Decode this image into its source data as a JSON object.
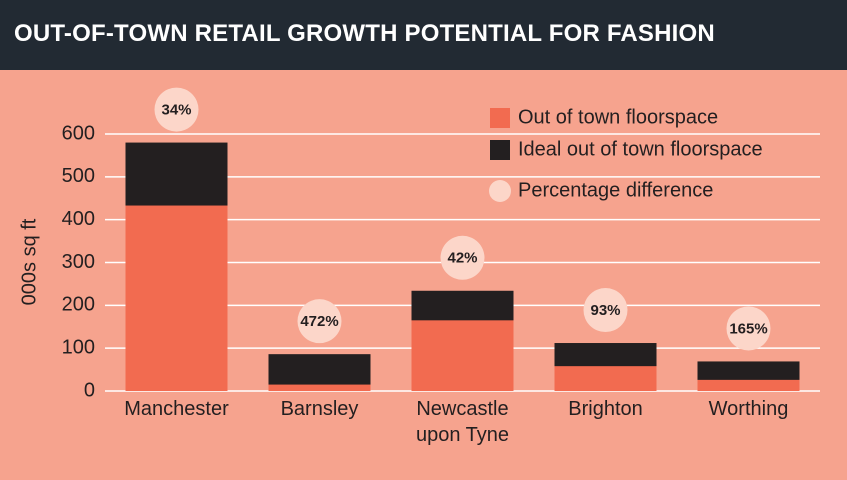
{
  "chart_data": {
    "type": "bar",
    "title": "OUT-OF-TOWN RETAIL GROWTH POTENTIAL FOR FASHION",
    "y_label": "000s sq ft",
    "categories": [
      "Manchester",
      "Barnsley",
      "Newcastle upon Tyne",
      "Brighton",
      "Worthing"
    ],
    "series": [
      {
        "name": "Out of town floorspace",
        "color": "#f26b50",
        "values": [
          433,
          15,
          165,
          58,
          26
        ]
      },
      {
        "name": "Ideal out of town floorspace",
        "color": "#231f20",
        "values": [
          580,
          86,
          234,
          112,
          69
        ]
      },
      {
        "name": "Percentage difference",
        "color": "#fcd6c9",
        "values": [
          34,
          472,
          42,
          93,
          165
        ],
        "value_labels": [
          "34%",
          "472%",
          "42%",
          "93%",
          "165%"
        ]
      }
    ],
    "ylim": [
      0,
      600
    ],
    "yticks": [
      0,
      100,
      200,
      300,
      400,
      500,
      600
    ],
    "grid": true
  }
}
